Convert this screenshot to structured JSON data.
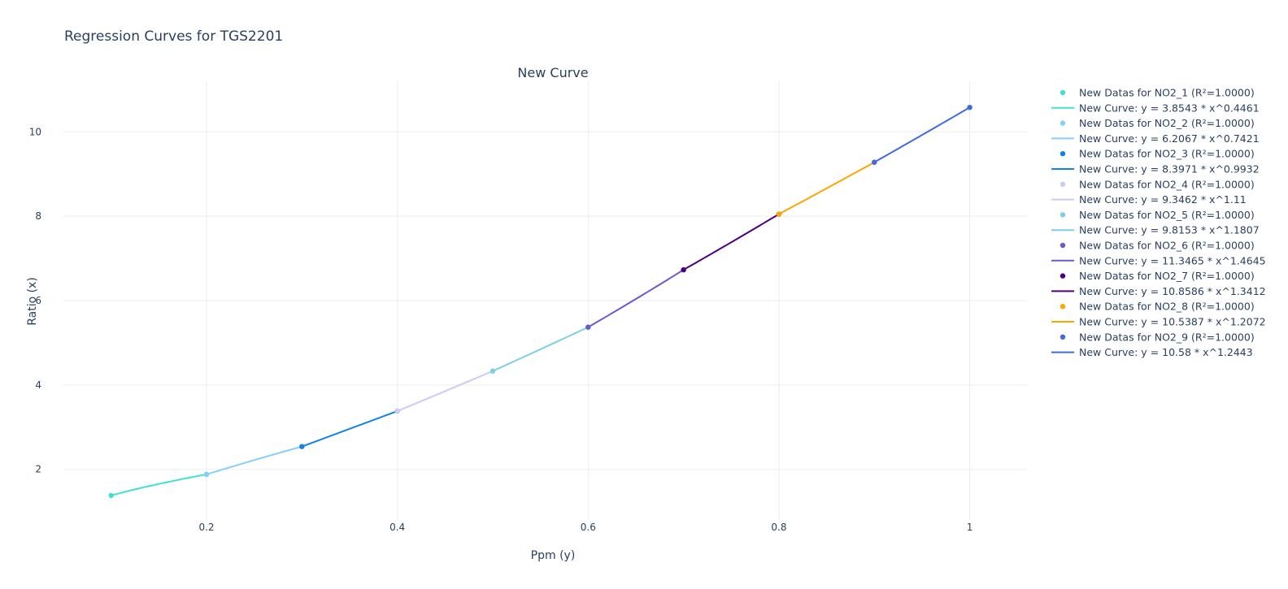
{
  "chart_data": {
    "type": "line",
    "title": "Regression Curves for TGS2201",
    "subtitle": "New Curve",
    "xlabel": "Ppm (y)",
    "ylabel": "Ratio (x)",
    "xlim": [
      0.05,
      1.06
    ],
    "ylim": [
      0.8,
      11.2
    ],
    "x_ticks": [
      {
        "value": 0.2,
        "label": "0.2"
      },
      {
        "value": 0.4,
        "label": "0.4"
      },
      {
        "value": 0.6,
        "label": "0.6"
      },
      {
        "value": 0.8,
        "label": "0.8"
      },
      {
        "value": 1.0,
        "label": "1"
      }
    ],
    "y_ticks": [
      {
        "value": 2,
        "label": "2"
      },
      {
        "value": 4,
        "label": "4"
      },
      {
        "value": 6,
        "label": "6"
      },
      {
        "value": 8,
        "label": "8"
      },
      {
        "value": 10,
        "label": "10"
      }
    ],
    "grid": true,
    "legend_position": "right",
    "series": [
      {
        "points_name": "New Datas for NO2_1 (R²=1.0000)",
        "curve_name": "New Curve: y = 3.8543 * x^0.4461",
        "color": "#40e0d0",
        "a": 3.8543,
        "b": 0.4461,
        "x": [
          0.1,
          0.2
        ]
      },
      {
        "points_name": "New Datas for NO2_2 (R²=1.0000)",
        "curve_name": "New Curve: y = 6.2067 * x^0.7421",
        "color": "#87cefa",
        "a": 6.2067,
        "b": 0.7421,
        "x": [
          0.2,
          0.3
        ]
      },
      {
        "points_name": "New Datas for NO2_3 (R²=1.0000)",
        "curve_name": "New Curve: y = 8.3971 * x^0.9932",
        "color": "#1283e6",
        "a": 8.3971,
        "b": 0.9932,
        "x": [
          0.3,
          0.4
        ]
      },
      {
        "points_name": "New Datas for NO2_4 (R²=1.0000)",
        "curve_name": "New Curve: y = 9.3462 * x^1.11",
        "color": "#cccaf8",
        "a": 9.3462,
        "b": 1.11,
        "x": [
          0.4,
          0.5
        ]
      },
      {
        "points_name": "New Datas for NO2_5 (R²=1.0000)",
        "curve_name": "New Curve: y = 9.8153 * x^1.1807",
        "color": "#7ecfe5",
        "a": 9.8153,
        "b": 1.1807,
        "x": [
          0.5,
          0.6
        ]
      },
      {
        "points_name": "New Datas for NO2_6 (R²=1.0000)",
        "curve_name": "New Curve: y = 11.3465 * x^1.4645",
        "color": "#6a5acd",
        "a": 11.3465,
        "b": 1.4645,
        "x": [
          0.6,
          0.7
        ]
      },
      {
        "points_name": "New Datas for NO2_7 (R²=1.0000)",
        "curve_name": "New Curve: y = 10.8586 * x^1.3412",
        "color": "#4b0082",
        "a": 10.8586,
        "b": 1.3412,
        "x": [
          0.7,
          0.8
        ]
      },
      {
        "points_name": "New Datas for NO2_8 (R²=1.0000)",
        "curve_name": "New Curve: y = 10.5387 * x^1.2072",
        "color": "#ffa500",
        "a": 10.5387,
        "b": 1.2072,
        "x": [
          0.8,
          0.9
        ]
      },
      {
        "points_name": "New Datas for NO2_9 (R²=1.0000)",
        "curve_name": "New Curve: y = 10.58 * x^1.2443",
        "color": "#4169e1",
        "a": 10.58,
        "b": 1.2443,
        "x": [
          0.9,
          1.0
        ]
      }
    ]
  }
}
